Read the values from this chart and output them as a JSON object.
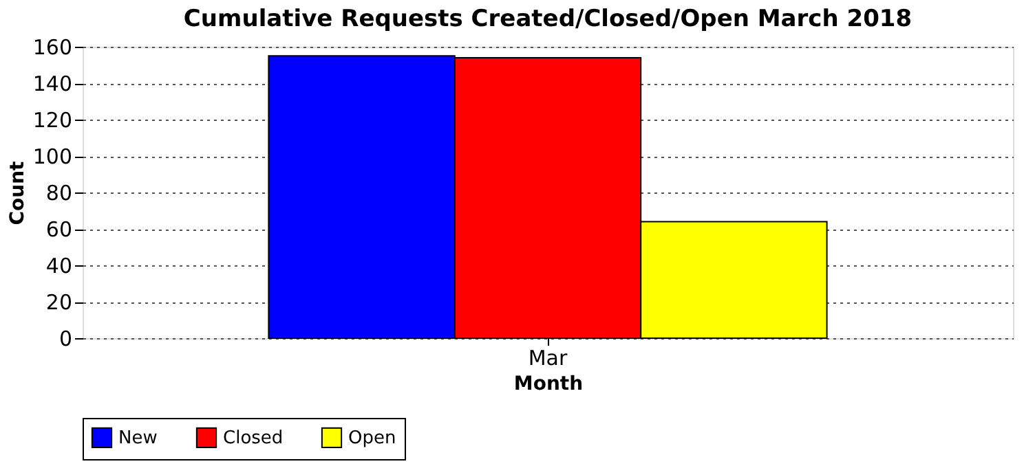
{
  "chart_data": {
    "type": "bar",
    "title": "Cumulative Requests Created/Closed/Open March 2018",
    "xlabel": "Month",
    "ylabel": "Count",
    "categories": [
      "Mar"
    ],
    "series": [
      {
        "name": "New",
        "color": "#0000ff",
        "values": [
          155
        ]
      },
      {
        "name": "Closed",
        "color": "#ff0000",
        "values": [
          154
        ]
      },
      {
        "name": "Open",
        "color": "#ffff00",
        "values": [
          64
        ]
      }
    ],
    "ylim": [
      0,
      160
    ],
    "yticks": [
      0,
      20,
      40,
      60,
      80,
      100,
      120,
      140,
      160
    ],
    "grid": "y",
    "legend": "bottom"
  }
}
